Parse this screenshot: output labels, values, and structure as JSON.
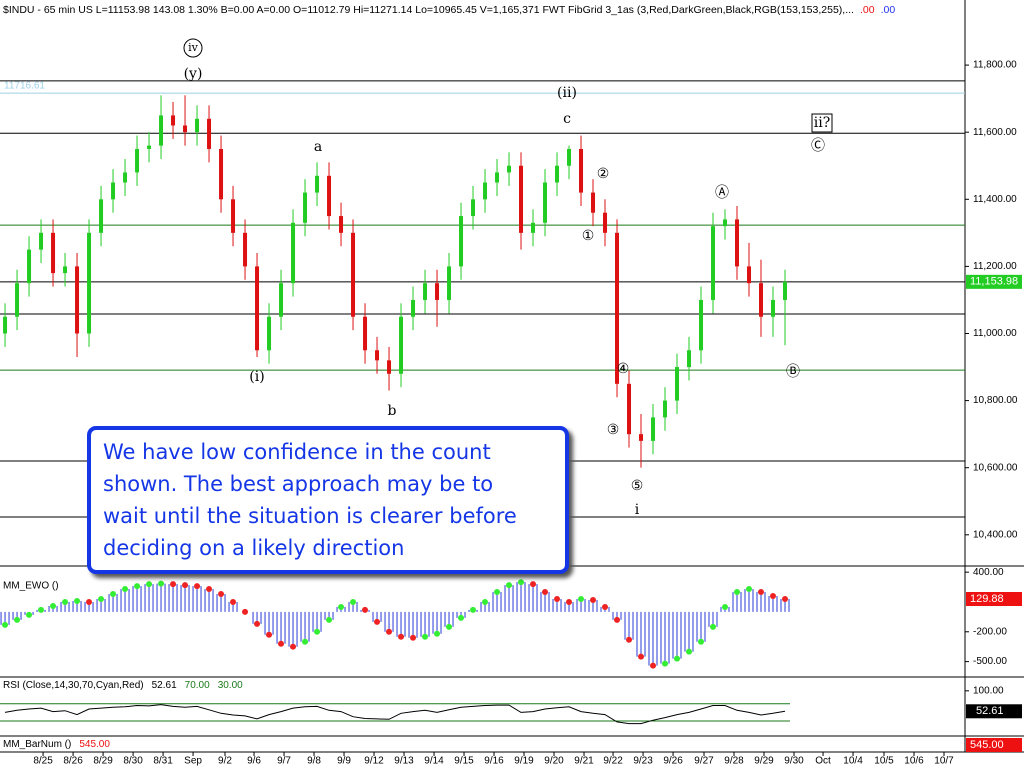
{
  "header": {
    "text": "$INDU - 65 min  US  L=11153.98  143.08  1.30%  B=0.00  A=0.00  O=11012.79  Hi=11271.14  Lo=10965.45  V=1,165,371  FWT FibGrid 3_1as (3,Red,DarkGreen,Black,RGB(153,153,255),...",
    "red": ".00",
    "blue": ".00"
  },
  "note": {
    "lines": [
      "We have low confidence in the count",
      "shown.  The best approach may be to",
      "wait until the situation is clearer before",
      "deciding on a likely direction"
    ]
  },
  "chart_data": [
    {
      "type": "candlestick",
      "up_color": "#22cc22",
      "down_color": "#dd1111",
      "xlim": [
        -0.42,
        80
      ],
      "ylim": [
        10310,
        11994
      ],
      "open": [
        11000,
        11050,
        11150,
        11250,
        11300,
        11180,
        11200,
        11000,
        11300,
        11400,
        11450,
        11480,
        11550,
        11560,
        11650,
        11620,
        11600,
        11640,
        11550,
        11400,
        11300,
        11200,
        10950,
        11050,
        11150,
        11330,
        11420,
        11470,
        11350,
        11300,
        11050,
        10950,
        10920,
        10880,
        11050,
        11100,
        11150,
        11100,
        11200,
        11350,
        11400,
        11450,
        11480,
        11500,
        11300,
        11330,
        11450,
        11500,
        11550,
        11420,
        11360,
        11300,
        10850,
        10700,
        10680,
        10750,
        10800,
        10900,
        10950,
        11100,
        11320,
        11340,
        11200,
        11150,
        11050,
        11100
      ],
      "high": [
        11090,
        11190,
        11290,
        11340,
        11340,
        11240,
        11240,
        11340,
        11440,
        11490,
        11520,
        11590,
        11600,
        11710,
        11690,
        11710,
        11680,
        11680,
        11590,
        11440,
        11340,
        11240,
        11090,
        11190,
        11370,
        11460,
        11510,
        11510,
        11390,
        11340,
        11090,
        10990,
        10960,
        11090,
        11140,
        11190,
        11190,
        11240,
        11390,
        11440,
        11490,
        11520,
        11540,
        11540,
        11370,
        11490,
        11540,
        11560,
        11590,
        11460,
        11400,
        11340,
        10890,
        10760,
        10790,
        10840,
        10940,
        10990,
        11140,
        11360,
        11370,
        11380,
        11270,
        11220,
        11140,
        11190
      ],
      "low": [
        10960,
        11010,
        11110,
        11210,
        11140,
        11140,
        10930,
        10960,
        11260,
        11360,
        11410,
        11440,
        11510,
        11520,
        11580,
        11560,
        11560,
        11510,
        11360,
        11260,
        11160,
        10930,
        10910,
        11010,
        11110,
        11290,
        11380,
        11310,
        11260,
        11010,
        10910,
        10880,
        10830,
        10840,
        11010,
        11060,
        11020,
        11060,
        11160,
        11310,
        11360,
        11410,
        11440,
        11250,
        11260,
        11290,
        11410,
        11460,
        11380,
        11320,
        11260,
        10810,
        10660,
        10600,
        10640,
        10710,
        10760,
        10860,
        10910,
        11060,
        11280,
        11160,
        11110,
        10990,
        10990,
        10965
      ],
      "close": [
        11050,
        11150,
        11250,
        11300,
        11180,
        11200,
        11000,
        11300,
        11400,
        11450,
        11480,
        11550,
        11560,
        11650,
        11620,
        11600,
        11640,
        11550,
        11400,
        11300,
        11200,
        10950,
        11050,
        11150,
        11330,
        11420,
        11470,
        11350,
        11300,
        11050,
        10950,
        10920,
        10880,
        11050,
        11100,
        11150,
        11100,
        11200,
        11350,
        11400,
        11450,
        11480,
        11500,
        11300,
        11330,
        11450,
        11500,
        11550,
        11420,
        11360,
        11300,
        10850,
        10700,
        10680,
        10750,
        10800,
        10900,
        10950,
        11100,
        11320,
        11340,
        11200,
        11150,
        11050,
        11100,
        11154
      ],
      "levels": [
        {
          "value": 11753,
          "color": "#000000"
        },
        {
          "value": 11597,
          "color": "#000000"
        },
        {
          "value": 11323,
          "color": "#1a7a1a"
        },
        {
          "value": 11058,
          "color": "#000000"
        },
        {
          "value": 10891,
          "color": "#1a7a1a"
        },
        {
          "value": 10620,
          "color": "#000000"
        },
        {
          "value": 10453,
          "color": "#000000"
        }
      ],
      "marker_line": {
        "value": 11716.61,
        "color": "#9fd0e8"
      },
      "last": {
        "value": 11153.98,
        "label": "11,153.98",
        "color": "#22cc22"
      },
      "yticks": [
        {
          "value": 10400,
          "label": "10,400.00"
        },
        {
          "value": 10600,
          "label": "10,600.00"
        },
        {
          "value": 10800,
          "label": "10,800.00"
        },
        {
          "value": 11000,
          "label": "11,000.00"
        },
        {
          "value": 11200,
          "label": "11,200.00"
        },
        {
          "value": 11400,
          "label": "11,400.00"
        },
        {
          "value": 11600,
          "label": "11,600.00"
        },
        {
          "value": 11800,
          "label": "11,800.00"
        }
      ],
      "xticks": [
        {
          "value": 3.17,
          "label": "8/25"
        },
        {
          "value": 5.67,
          "label": "8/26"
        },
        {
          "value": 8.17,
          "label": "8/29"
        },
        {
          "value": 10.67,
          "label": "8/30"
        },
        {
          "value": 13.17,
          "label": "8/31"
        },
        {
          "value": 15.67,
          "label": "Sep"
        },
        {
          "value": 18.33,
          "label": "9/2"
        },
        {
          "value": 20.75,
          "label": "9/6"
        },
        {
          "value": 23.25,
          "label": "9/7"
        },
        {
          "value": 25.75,
          "label": "9/8"
        },
        {
          "value": 28.25,
          "label": "9/9"
        },
        {
          "value": 30.75,
          "label": "9/12"
        },
        {
          "value": 33.25,
          "label": "9/13"
        },
        {
          "value": 35.75,
          "label": "9/14"
        },
        {
          "value": 38.25,
          "label": "9/15"
        },
        {
          "value": 40.75,
          "label": "9/16"
        },
        {
          "value": 43.25,
          "label": "9/19"
        },
        {
          "value": 45.75,
          "label": "9/20"
        },
        {
          "value": 48.25,
          "label": "9/21"
        },
        {
          "value": 50.67,
          "label": "9/22"
        },
        {
          "value": 53.17,
          "label": "9/23"
        },
        {
          "value": 55.67,
          "label": "9/26"
        },
        {
          "value": 58.25,
          "label": "9/27"
        },
        {
          "value": 60.75,
          "label": "9/28"
        },
        {
          "value": 63.25,
          "label": "9/29"
        },
        {
          "value": 65.75,
          "label": "9/30"
        },
        {
          "value": 68.17,
          "label": "Oct"
        },
        {
          "value": 70.67,
          "label": "10/4"
        },
        {
          "value": 73.25,
          "label": "10/5"
        },
        {
          "value": 75.75,
          "label": "10/6"
        },
        {
          "value": 78.25,
          "label": "10/7"
        }
      ],
      "annotations": [
        {
          "text": "iv",
          "style": "circled"
        },
        {
          "text": "(y)",
          "style": "plain"
        },
        {
          "text": "(ii)",
          "style": "plain"
        },
        {
          "text": "c",
          "style": "plain"
        },
        {
          "text": "a",
          "style": "plain"
        },
        {
          "text": "(i)",
          "style": "plain"
        },
        {
          "text": "b",
          "style": "plain"
        },
        {
          "text": "ii?",
          "style": "boxed"
        },
        {
          "text": "Ⓒ",
          "style": "plain"
        },
        {
          "text": "②",
          "style": "plain"
        },
        {
          "text": "①",
          "style": "plain"
        },
        {
          "text": "Ⓐ",
          "style": "plain"
        },
        {
          "text": "④",
          "style": "plain"
        },
        {
          "text": "Ⓑ",
          "style": "plain"
        },
        {
          "text": "③",
          "style": "plain"
        },
        {
          "text": "⑤",
          "style": "plain"
        },
        {
          "text": "i",
          "style": "plain"
        }
      ]
    },
    {
      "type": "oscillator",
      "title": "MM_EWO ()",
      "ylim": [
        -655,
        462
      ],
      "bar_color": "#2a3ad8",
      "up_color": "#33ee33",
      "down_color": "#ee2222",
      "values": [
        -130,
        -80,
        -30,
        20,
        60,
        100,
        110,
        100,
        130,
        180,
        230,
        260,
        280,
        285,
        280,
        270,
        260,
        230,
        180,
        100,
        0,
        -120,
        -230,
        -320,
        -350,
        -300,
        -200,
        -80,
        50,
        100,
        20,
        -100,
        -200,
        -250,
        -260,
        -250,
        -220,
        -150,
        -60,
        20,
        100,
        200,
        270,
        300,
        280,
        200,
        130,
        100,
        130,
        120,
        50,
        -80,
        -280,
        -450,
        -540,
        -520,
        -470,
        -400,
        -300,
        -150,
        50,
        200,
        230,
        200,
        160,
        130
      ],
      "yticks": [
        {
          "value": 400,
          "label": "400.00"
        },
        {
          "value": -200,
          "label": "-200.00"
        },
        {
          "value": -500,
          "label": "-500.00"
        }
      ],
      "last": {
        "value": 129.88,
        "label": "129.88",
        "color": "#ee1111"
      }
    },
    {
      "type": "line",
      "title": "RSI (Close,14,30,70,Cyan,Red)",
      "ylim": [
        -4.6,
        132
      ],
      "color": "#000000",
      "values": [
        50,
        55,
        58,
        60,
        52,
        54,
        45,
        58,
        60,
        62,
        63,
        66,
        65,
        68,
        64,
        62,
        64,
        56,
        48,
        44,
        42,
        35,
        45,
        52,
        60,
        63,
        64,
        55,
        52,
        40,
        36,
        35,
        34,
        48,
        52,
        55,
        50,
        56,
        62,
        64,
        66,
        67,
        67,
        50,
        52,
        58,
        61,
        63,
        52,
        48,
        45,
        28,
        24,
        24,
        32,
        38,
        45,
        50,
        58,
        66,
        66,
        55,
        50,
        44,
        48,
        52.61
      ],
      "levels": [
        {
          "value": 70,
          "label": "70.00",
          "color": "#1a7a1a"
        },
        {
          "value": 30,
          "label": "30.00",
          "color": "#1a7a1a"
        }
      ],
      "yticks": [
        {
          "value": 100,
          "label": "100.00"
        }
      ],
      "last": {
        "value": 52.61,
        "color": "#000000"
      }
    },
    {
      "type": "indicator",
      "title": "MM_BarNum ()",
      "last": {
        "value": 545,
        "label": "545.00",
        "color": "#ee1111"
      }
    }
  ]
}
